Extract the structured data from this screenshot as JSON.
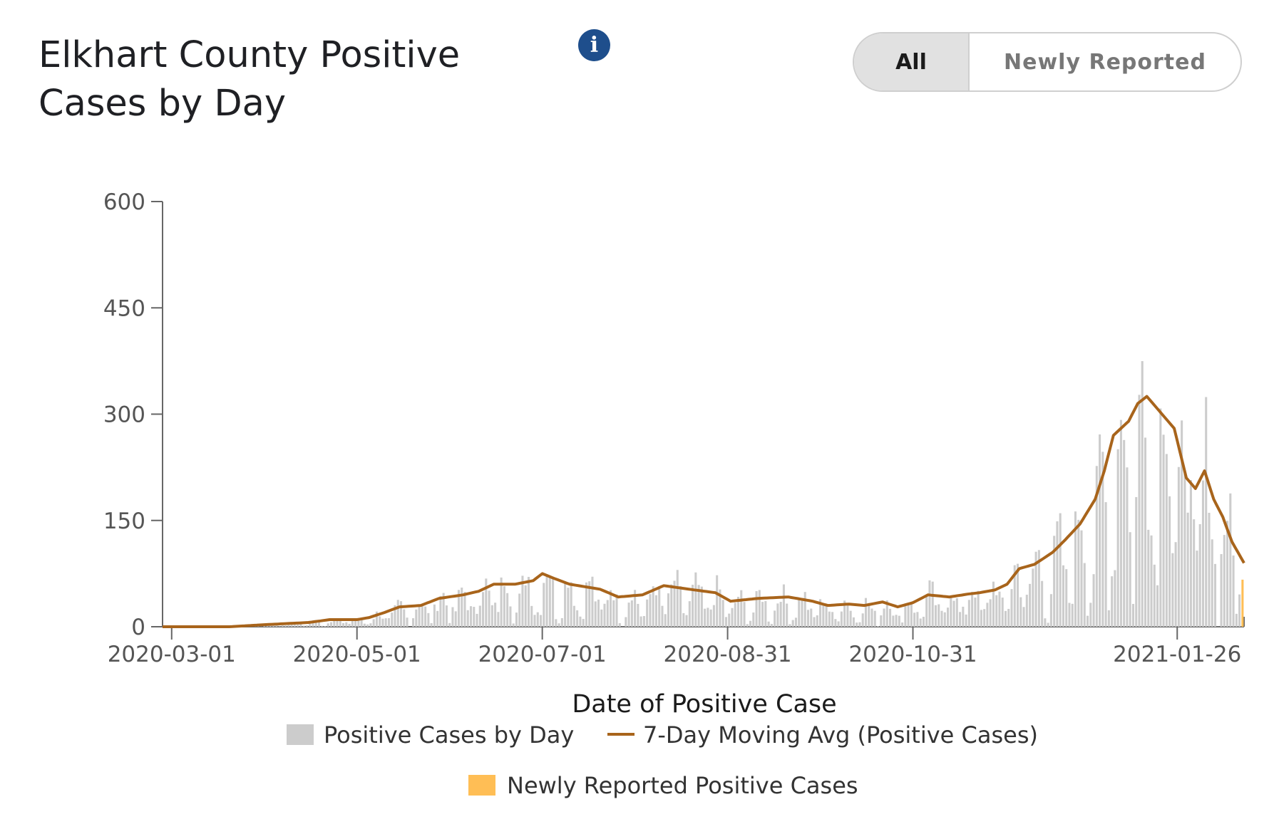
{
  "header": {
    "title_line1": "Elkhart County Positive",
    "title_line2": "Cases by Day",
    "info_icon": "info-icon"
  },
  "toggle": {
    "options": [
      "All",
      "Newly Reported"
    ],
    "selected": "All"
  },
  "colors": {
    "bars": "#cccccc",
    "moving_avg": "#a8641b",
    "newly_reported": "#ffbe55",
    "axis": "#666666"
  },
  "chart_data": {
    "type": "bar",
    "xlabel": "Date of Positive Case",
    "ylabel": "",
    "ylim": [
      0,
      600
    ],
    "yticks": [
      0,
      150,
      300,
      450,
      600
    ],
    "xticks": [
      "2020-03-01",
      "2020-05-01",
      "2020-07-01",
      "2020-08-31",
      "2020-10-31",
      "2021-01-26"
    ],
    "x_start": "2020-02-27",
    "x_end": "2021-02-17",
    "legend": [
      {
        "label": "Positive Cases by Day",
        "kind": "bar"
      },
      {
        "label": "7-Day Moving Avg (Positive Cases)",
        "kind": "line"
      },
      {
        "label": "Newly Reported Positive Cases",
        "kind": "bar-new"
      }
    ],
    "series_shape_7day_avg": [
      [
        "2020-02-27",
        0
      ],
      [
        "2020-03-20",
        0
      ],
      [
        "2020-04-01",
        3
      ],
      [
        "2020-04-15",
        6
      ],
      [
        "2020-04-22",
        10
      ],
      [
        "2020-05-01",
        10
      ],
      [
        "2020-05-05",
        13
      ],
      [
        "2020-05-10",
        20
      ],
      [
        "2020-05-15",
        28
      ],
      [
        "2020-05-22",
        30
      ],
      [
        "2020-05-28",
        40
      ],
      [
        "2020-06-05",
        45
      ],
      [
        "2020-06-10",
        50
      ],
      [
        "2020-06-15",
        60
      ],
      [
        "2020-06-22",
        60
      ],
      [
        "2020-06-28",
        65
      ],
      [
        "2020-07-01",
        75
      ],
      [
        "2020-07-05",
        68
      ],
      [
        "2020-07-10",
        60
      ],
      [
        "2020-07-20",
        53
      ],
      [
        "2020-07-26",
        42
      ],
      [
        "2020-08-03",
        45
      ],
      [
        "2020-08-10",
        58
      ],
      [
        "2020-08-20",
        52
      ],
      [
        "2020-08-27",
        48
      ],
      [
        "2020-09-01",
        36
      ],
      [
        "2020-09-10",
        40
      ],
      [
        "2020-09-20",
        42
      ],
      [
        "2020-09-28",
        36
      ],
      [
        "2020-10-03",
        30
      ],
      [
        "2020-10-10",
        32
      ],
      [
        "2020-10-15",
        30
      ],
      [
        "2020-10-21",
        35
      ],
      [
        "2020-10-26",
        28
      ],
      [
        "2020-10-31",
        34
      ],
      [
        "2020-11-05",
        45
      ],
      [
        "2020-11-12",
        42
      ],
      [
        "2020-11-18",
        46
      ],
      [
        "2020-11-22",
        48
      ],
      [
        "2020-11-27",
        52
      ],
      [
        "2020-12-01",
        60
      ],
      [
        "2020-12-05",
        82
      ],
      [
        "2020-12-10",
        88
      ],
      [
        "2020-12-16",
        105
      ],
      [
        "2020-12-20",
        122
      ],
      [
        "2020-12-25",
        145
      ],
      [
        "2020-12-30",
        180
      ],
      [
        "2021-01-02",
        220
      ],
      [
        "2021-01-05",
        270
      ],
      [
        "2021-01-10",
        290
      ],
      [
        "2021-01-13",
        315
      ],
      [
        "2021-01-16",
        325
      ],
      [
        "2021-01-20",
        305
      ],
      [
        "2021-01-25",
        280
      ],
      [
        "2021-01-29",
        210
      ],
      [
        "2021-02-01",
        195
      ],
      [
        "2021-02-04",
        220
      ],
      [
        "2021-02-07",
        180
      ],
      [
        "2021-02-10",
        155
      ],
      [
        "2021-02-13",
        120
      ],
      [
        "2021-02-17",
        90
      ]
    ]
  }
}
